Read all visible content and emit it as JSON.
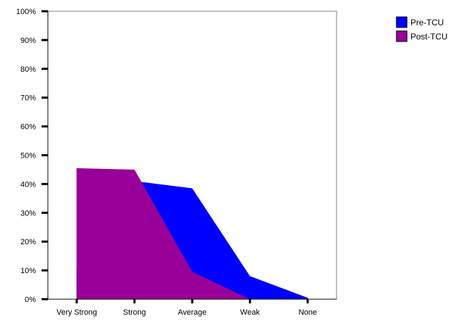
{
  "chart_data": {
    "type": "area",
    "categories": [
      "Very Strong",
      "Strong",
      "Average",
      "Weak",
      "None"
    ],
    "series": [
      {
        "name": "Pre-TCU",
        "values": [
          11,
          41,
          38.5,
          8,
          0.5
        ],
        "color": "#0000ff"
      },
      {
        "name": "Post-TCU",
        "values": [
          45.5,
          45,
          9.5,
          0,
          0
        ],
        "color": "#990099"
      }
    ],
    "ylim": [
      0,
      100
    ],
    "y_ticks": [
      "0%",
      "10%",
      "20%",
      "30%",
      "40%",
      "50%",
      "60%",
      "70%",
      "80%",
      "90%",
      "100%"
    ],
    "legend_position": "top-right",
    "grid": false,
    "title": "",
    "xlabel": "",
    "ylabel": ""
  }
}
